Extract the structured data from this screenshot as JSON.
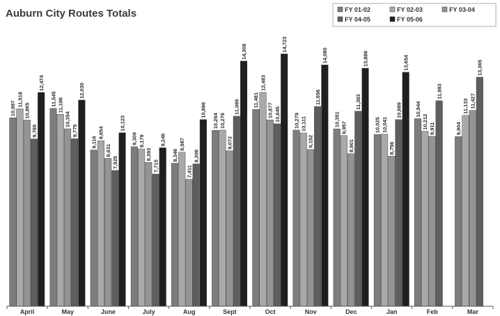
{
  "chart_data": {
    "type": "bar",
    "title": "Auburn City Routes Totals",
    "categories": [
      "April",
      "May",
      "June",
      "July",
      "Aug",
      "Sept",
      "Oct",
      "Nov",
      "Dec",
      "Jan",
      "Feb",
      "Mar"
    ],
    "series": [
      {
        "name": "FY 01-02",
        "color": "#7d7d7d",
        "values": [
          10997,
          11545,
          9116,
          9309,
          8346,
          10264,
          11481,
          10279,
          10351,
          10025,
          10944,
          9904
        ]
      },
      {
        "name": "FY 02-03",
        "color": "#a9a9a9",
        "values": [
          11518,
          11196,
          9654,
          9179,
          8987,
          10276,
          12483,
          10111,
          9957,
          10041,
          10212,
          11133
        ]
      },
      {
        "name": "FY 03-04",
        "color": "#949494",
        "values": [
          10865,
          10354,
          8631,
          8393,
          7411,
          9072,
          10877,
          9152,
          8901,
          8756,
          9911,
          11427
        ]
      },
      {
        "name": "FY 04-05",
        "color": "#5e5e5e",
        "values": [
          9765,
          9775,
          7925,
          7715,
          8306,
          11089,
          10645,
          11656,
          11383,
          10889,
          11993,
          13365
        ]
      },
      {
        "name": "FY 05-06",
        "color": "#1f1f1f",
        "values": [
          12474,
          12030,
          10123,
          9246,
          10896,
          14308,
          14723,
          14080,
          13889,
          13654,
          null,
          null
        ]
      }
    ],
    "ylim": [
      0,
      16000
    ],
    "grid": false,
    "legend": "top-right"
  }
}
